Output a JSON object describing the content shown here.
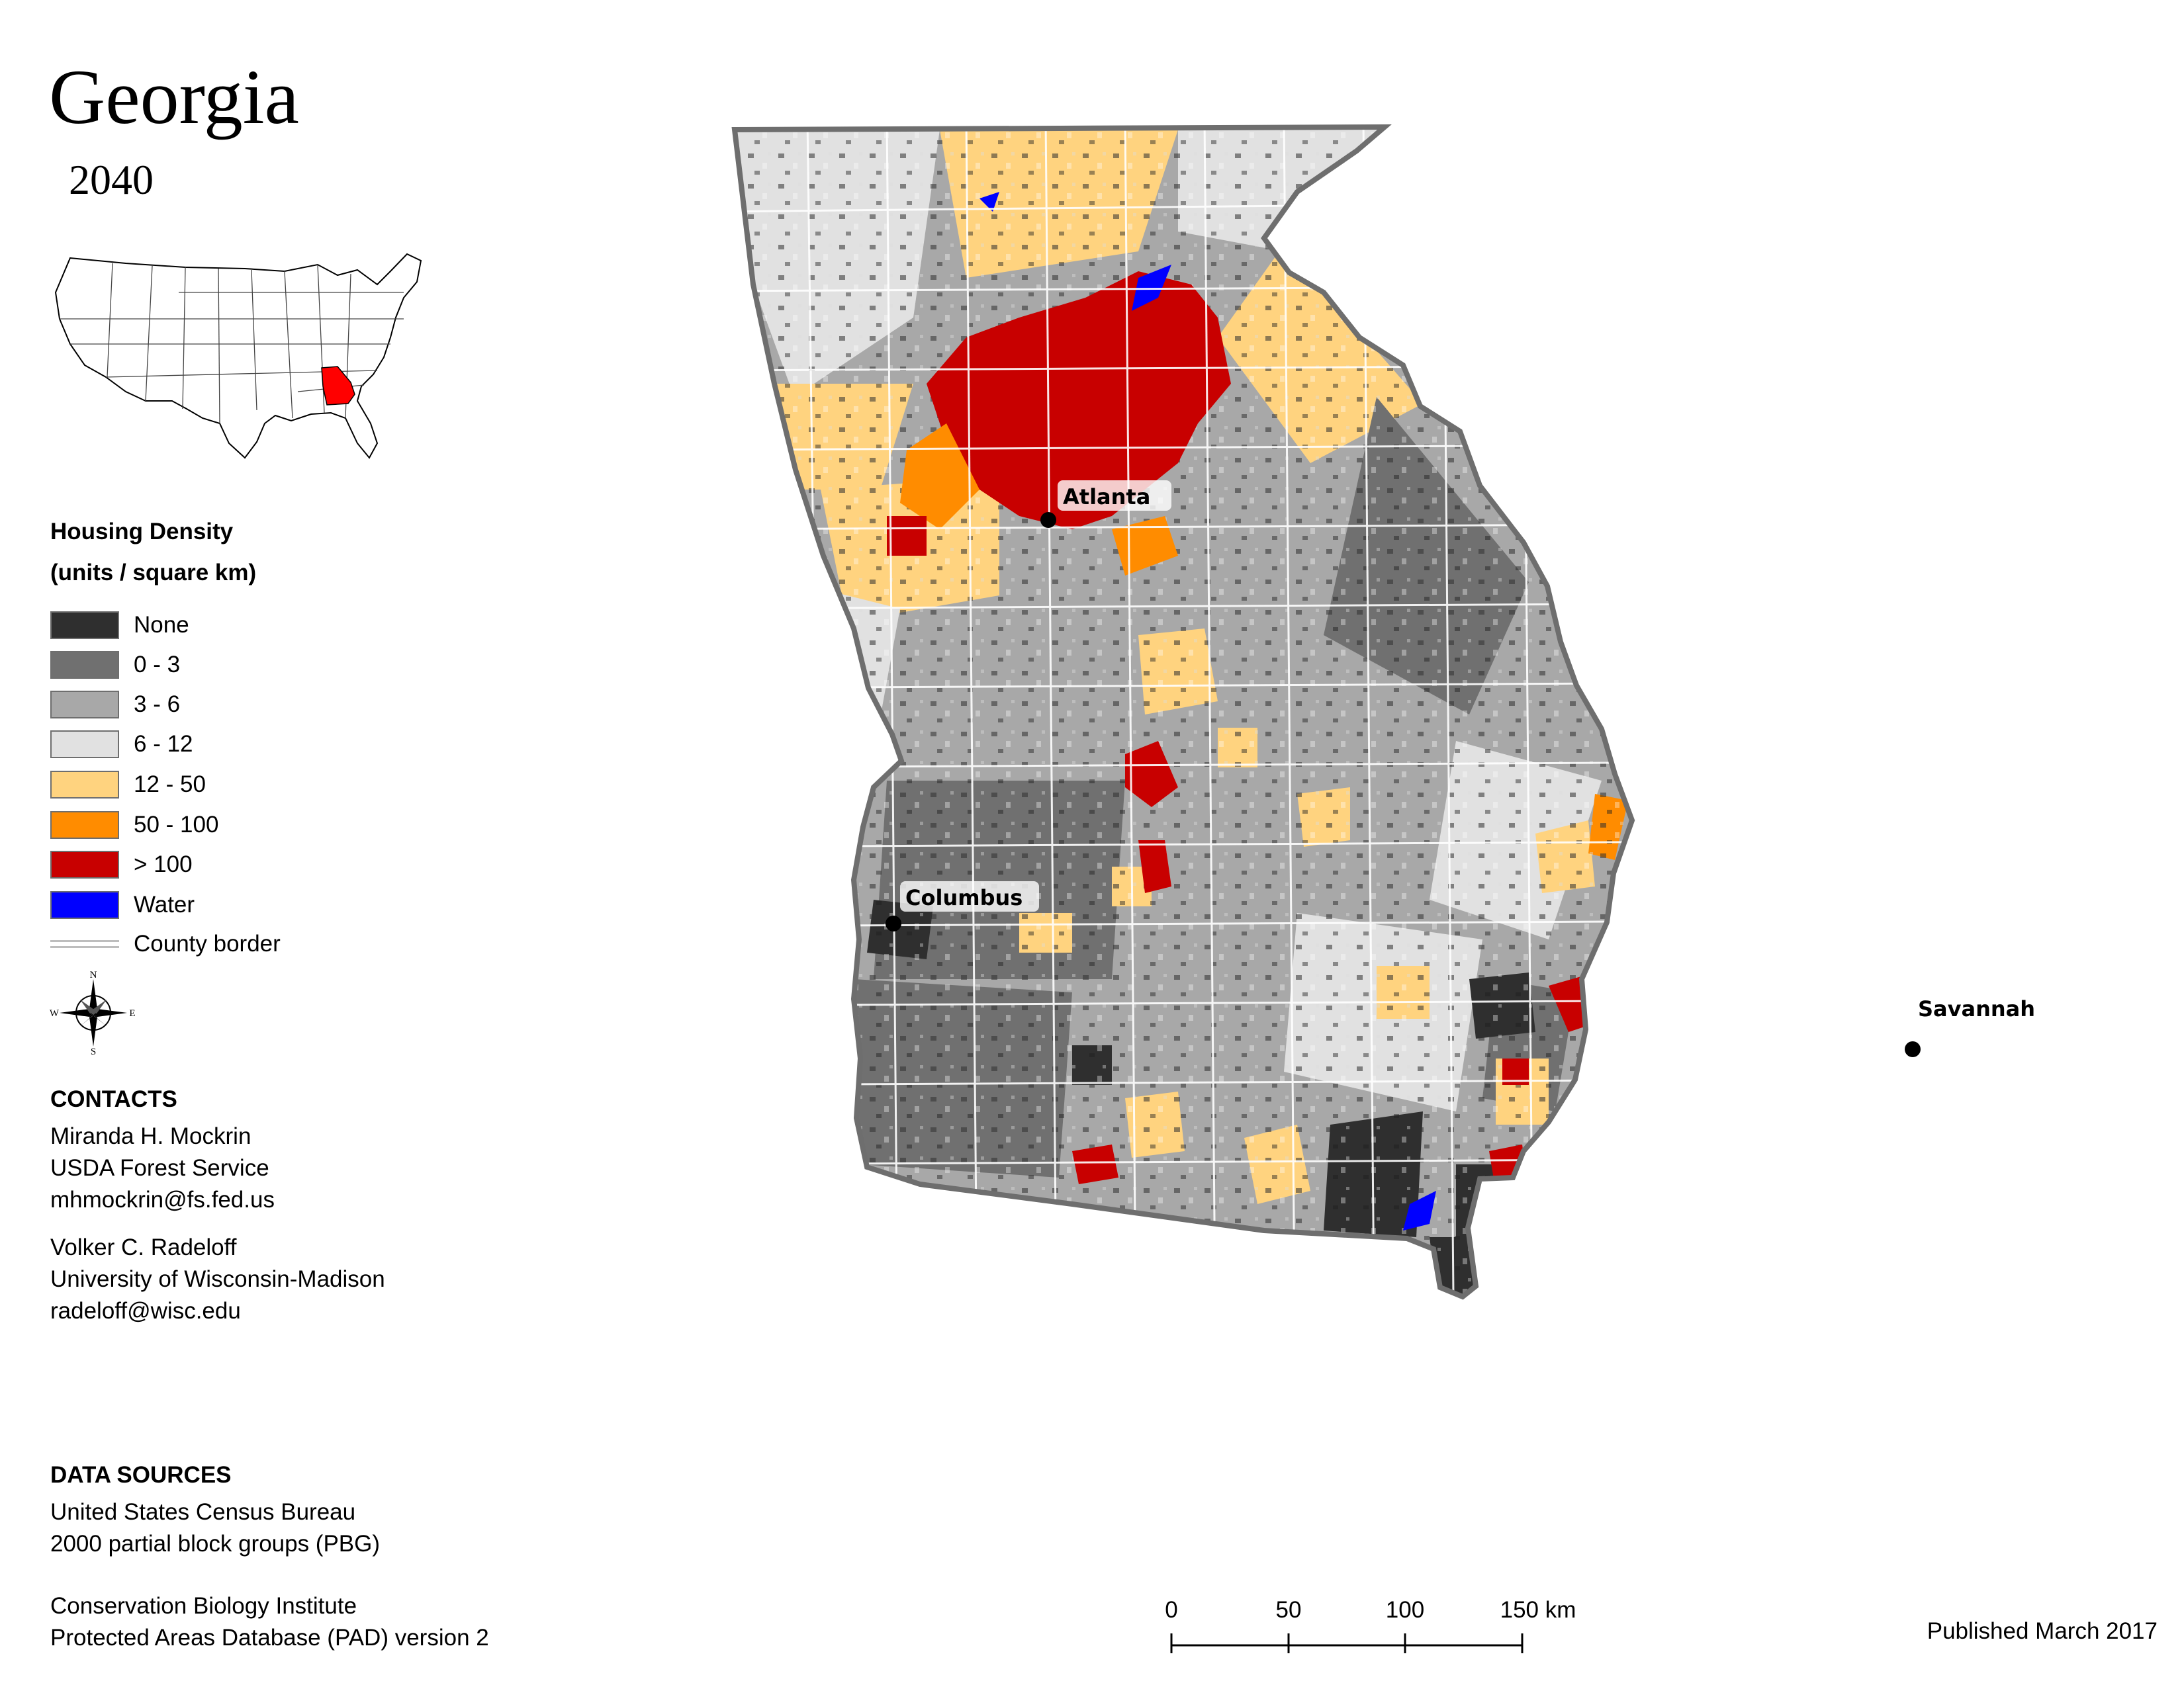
{
  "map": {
    "title": "Georgia",
    "subtitle": "2040",
    "cities": [
      {
        "name": "Atlanta"
      },
      {
        "name": "Columbus"
      },
      {
        "name": "Savannah"
      }
    ]
  },
  "legend": {
    "title": "Housing Density",
    "units": "(units / square km)",
    "items": [
      {
        "label": "None",
        "color": "#2f2f2f"
      },
      {
        "label": "0 - 3",
        "color": "#707070"
      },
      {
        "label": "3 - 6",
        "color": "#a8a8a8"
      },
      {
        "label": "6 - 12",
        "color": "#e1e1e1"
      },
      {
        "label": "12 - 50",
        "color": "#ffd37f"
      },
      {
        "label": "50 - 100",
        "color": "#ff8c00"
      },
      {
        "label": "> 100",
        "color": "#c80000"
      },
      {
        "label": "Water",
        "color": "#0000ff"
      }
    ],
    "county_border_label": "County border"
  },
  "contacts": {
    "heading": "CONTACTS",
    "people": [
      {
        "name": "Miranda H. Mockrin",
        "org": "USDA Forest Service",
        "email": "mhmockrin@fs.fed.us"
      },
      {
        "name": "Volker C. Radeloff",
        "org": "University of Wisconsin-Madison",
        "email": "radeloff@wisc.edu"
      }
    ]
  },
  "data_sources": {
    "heading": "DATA SOURCES",
    "sources": [
      {
        "line1": "United States Census Bureau",
        "line2": "2000 partial block groups (PBG)"
      },
      {
        "line1": "Conservation Biology Institute",
        "line2": "Protected Areas Database (PAD) version 2"
      }
    ]
  },
  "scale_bar": {
    "ticks": [
      "0",
      "50",
      "100",
      "150 km"
    ]
  },
  "compass": {
    "n": "N",
    "s": "S",
    "e": "E",
    "w": "W"
  },
  "inset": {
    "highlight_state": "Georgia",
    "highlight_color": "#ff0000"
  },
  "published": "Published March 2017"
}
